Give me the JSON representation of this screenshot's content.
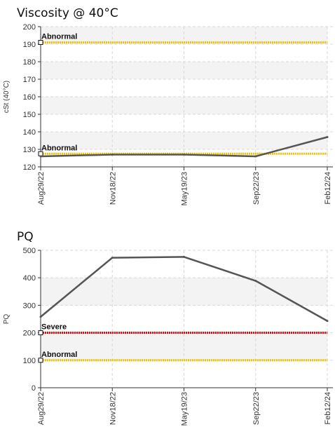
{
  "chart_data": [
    {
      "type": "line",
      "title": "Viscosity @ 40°C",
      "ylabel": "cSt (40°C)",
      "ylim": [
        120,
        200
      ],
      "yticks": [
        120,
        130,
        140,
        150,
        160,
        170,
        180,
        190,
        200
      ],
      "categories": [
        "Aug29/22",
        "Nov18/22",
        "May19/23",
        "Sep22/23",
        "Feb12/24"
      ],
      "series": [
        {
          "values": [
            126,
            127,
            127,
            126,
            137
          ],
          "color": "#555555"
        }
      ],
      "thresholds": [
        {
          "label": "Abnormal",
          "value": 191,
          "color": "#f2c200"
        },
        {
          "label": "Abnormal",
          "value": 127.5,
          "color": "#f2c200"
        }
      ],
      "grid": true
    },
    {
      "type": "line",
      "title": "PQ",
      "ylabel": "PQ",
      "ylim": [
        0,
        500
      ],
      "yticks": [
        0,
        100,
        200,
        300,
        400,
        500
      ],
      "categories": [
        "Aug29/22",
        "Nov18/22",
        "May19/23",
        "Sep22/23",
        "Feb12/24"
      ],
      "series": [
        {
          "values": [
            258,
            473,
            476,
            389,
            243
          ],
          "color": "#555555"
        }
      ],
      "thresholds": [
        {
          "label": "Severe",
          "value": 200,
          "color": "#e00000"
        },
        {
          "label": "Abnormal",
          "value": 100,
          "color": "#f2c200"
        }
      ],
      "grid": true
    }
  ]
}
